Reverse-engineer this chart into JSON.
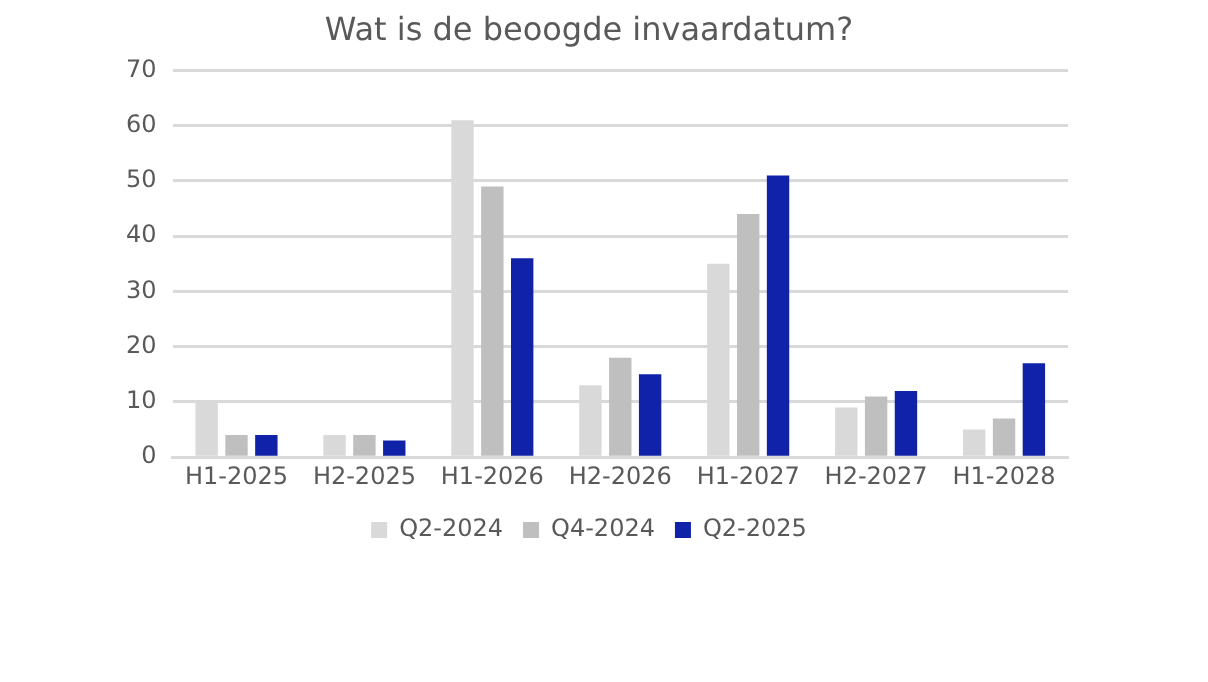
{
  "chart_data": {
    "type": "bar",
    "title": "Wat is de beoogde invaardatum?",
    "categories": [
      "H1-2025",
      "H2-2025",
      "H1-2026",
      "H2-2026",
      "H1-2027",
      "H2-2027",
      "H1-2028"
    ],
    "series": [
      {
        "name": "Q2-2024",
        "color": "#d9d9d9",
        "values": [
          10,
          4,
          61,
          13,
          35,
          9,
          5
        ]
      },
      {
        "name": "Q4-2024",
        "color": "#bfbfbf",
        "values": [
          4,
          4,
          49,
          18,
          44,
          11,
          7
        ]
      },
      {
        "name": "Q2-2025",
        "color": "#1022a8",
        "values": [
          4,
          3,
          36,
          15,
          51,
          12,
          17
        ]
      }
    ],
    "ylim": [
      0,
      70
    ],
    "yticks": [
      0,
      10,
      20,
      30,
      40,
      50,
      60,
      70
    ],
    "grid": "y",
    "legend": "bottom"
  }
}
